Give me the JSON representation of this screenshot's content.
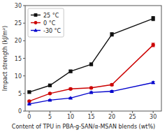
{
  "chart_data": {
    "type": "line",
    "x": [
      0,
      5,
      10,
      15,
      20,
      30
    ],
    "series": [
      {
        "name": "25 °C",
        "color": "#111111",
        "marker": "square",
        "values": [
          5.4,
          7.3,
          11.3,
          13.3,
          21.8,
          26.3
        ],
        "yerr": [
          0.25,
          0.25,
          0.35,
          0.35,
          0.5,
          0.6
        ]
      },
      {
        "name": "0 °C",
        "color": "#cc0000",
        "marker": "circle",
        "values": [
          2.8,
          5.0,
          6.3,
          6.6,
          7.5,
          18.8
        ],
        "yerr": [
          0.2,
          0.2,
          0.25,
          0.25,
          0.3,
          0.5
        ]
      },
      {
        "name": "-30 °C",
        "color": "#0000cc",
        "marker": "triangle",
        "values": [
          2.0,
          3.1,
          3.7,
          5.3,
          5.6,
          8.1
        ],
        "yerr": [
          0.15,
          0.18,
          0.2,
          0.25,
          0.25,
          0.3
        ]
      }
    ],
    "xlabel": "Content of TPU in PBA-g-SAN/α-MSAN blends (wt%)",
    "ylabel": "Impact strength (kJ/m²)",
    "xlim": [
      -1,
      32
    ],
    "ylim": [
      0,
      30
    ],
    "xticks": [
      0,
      5,
      10,
      15,
      20,
      25,
      30
    ],
    "yticks": [
      0,
      5,
      10,
      15,
      20,
      25,
      30
    ],
    "legend": "upper left",
    "grid": false
  }
}
